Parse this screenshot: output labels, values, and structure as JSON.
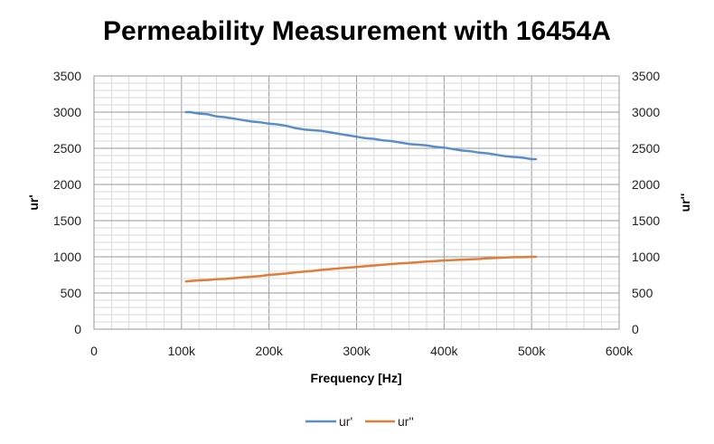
{
  "chart_data": {
    "type": "line",
    "title": "Permeability Measurement with 16454A",
    "xlabel": "Frequency [Hz]",
    "ylabel": "ur'",
    "y2label": "ur''",
    "xlim": [
      0,
      600000
    ],
    "ylim": [
      0,
      3500
    ],
    "y2lim": [
      0,
      3500
    ],
    "x_tick_labels": [
      "0",
      "100k",
      "200k",
      "300k",
      "400k",
      "500k",
      "600k"
    ],
    "y_tick_labels": [
      "0",
      "500",
      "1000",
      "1500",
      "2000",
      "2500",
      "3000",
      "3500"
    ],
    "y2_tick_labels": [
      "0",
      "500",
      "1000",
      "1500",
      "2000",
      "2500",
      "3000",
      "3500"
    ],
    "grid": true,
    "legend": "bottom",
    "series": [
      {
        "name": "ur'",
        "color": "#5b8ec9",
        "axis": "left",
        "x": [
          105000,
          110000,
          120000,
          130000,
          140000,
          150000,
          160000,
          170000,
          180000,
          190000,
          200000,
          210000,
          220000,
          230000,
          240000,
          250000,
          260000,
          270000,
          280000,
          290000,
          300000,
          310000,
          320000,
          330000,
          340000,
          350000,
          360000,
          370000,
          380000,
          390000,
          400000,
          410000,
          420000,
          430000,
          440000,
          450000,
          460000,
          470000,
          480000,
          490000,
          500000,
          505000
        ],
        "values": [
          3000,
          3000,
          2980,
          2970,
          2940,
          2930,
          2910,
          2890,
          2870,
          2860,
          2840,
          2830,
          2810,
          2780,
          2760,
          2750,
          2740,
          2720,
          2700,
          2680,
          2660,
          2640,
          2630,
          2610,
          2600,
          2580,
          2560,
          2550,
          2540,
          2520,
          2510,
          2490,
          2470,
          2460,
          2440,
          2430,
          2410,
          2390,
          2380,
          2370,
          2350,
          2350
        ]
      },
      {
        "name": "ur''",
        "color": "#e07d39",
        "axis": "right",
        "x": [
          105000,
          110000,
          120000,
          130000,
          140000,
          150000,
          160000,
          170000,
          180000,
          190000,
          200000,
          210000,
          220000,
          230000,
          240000,
          250000,
          260000,
          270000,
          280000,
          290000,
          300000,
          310000,
          320000,
          330000,
          340000,
          350000,
          360000,
          370000,
          380000,
          390000,
          400000,
          410000,
          420000,
          430000,
          440000,
          450000,
          460000,
          470000,
          480000,
          490000,
          500000,
          505000
        ],
        "values": [
          660,
          665,
          675,
          680,
          690,
          695,
          705,
          715,
          725,
          735,
          750,
          760,
          770,
          785,
          795,
          805,
          820,
          830,
          840,
          850,
          860,
          870,
          880,
          890,
          900,
          910,
          915,
          925,
          935,
          940,
          950,
          955,
          960,
          965,
          970,
          980,
          985,
          990,
          995,
          995,
          1000,
          1000
        ]
      }
    ]
  }
}
